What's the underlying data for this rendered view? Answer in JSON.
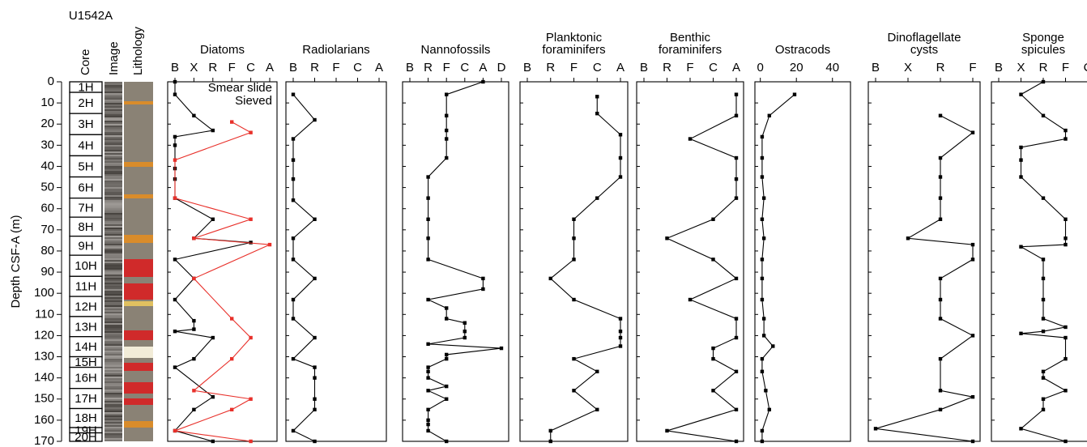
{
  "chart_data": {
    "type": "line",
    "title": "U1542A",
    "ylabel": "Depth CSF-A (m)",
    "column_headers": [
      "Core",
      "Image",
      "Lithology"
    ],
    "ylim": [
      0,
      170
    ],
    "yticks": [
      0,
      10,
      20,
      30,
      40,
      50,
      60,
      70,
      80,
      90,
      100,
      110,
      120,
      130,
      140,
      150,
      160,
      170
    ],
    "legend": "upper right",
    "cores": {
      "labels": [
        "1H",
        "2H",
        "3H",
        "4H",
        "5H",
        "6H",
        "7H",
        "8H",
        "9H",
        "10H",
        "11H",
        "12H",
        "13H",
        "14H",
        "15H",
        "16H",
        "17H",
        "18H",
        "19H",
        "20H"
      ],
      "tops": [
        0,
        5,
        15,
        25,
        35,
        45,
        55,
        64,
        73,
        82,
        92,
        101.5,
        111,
        120.5,
        130,
        135,
        145,
        154.5,
        163.5,
        166
      ],
      "bottoms": [
        5,
        15,
        25,
        35,
        45,
        55,
        64,
        73,
        82,
        92,
        101.5,
        111,
        120.5,
        130,
        135,
        145,
        154.5,
        163.5,
        166,
        170
      ]
    },
    "panels": [
      {
        "title": [
          "Diatoms"
        ],
        "categories": [
          "B",
          "X",
          "R",
          "F",
          "C",
          "A"
        ],
        "series": [
          {
            "name": "Smear slide",
            "color": "#000000",
            "depth": [
              0,
              6,
              16,
              23,
              26,
              30,
              41,
              46,
              55,
              65,
              74,
              76,
              84,
              93,
              103,
              113,
              117,
              118,
              121,
              131,
              135,
              149,
              155,
              165,
              170
            ],
            "values": [
              "B",
              "B",
              "X",
              "R",
              "B",
              "B",
              "B",
              "B",
              "B",
              "R",
              "X",
              "C",
              "B",
              "X",
              "B",
              "X",
              "X",
              "B",
              "R",
              "X",
              "B",
              "R",
              "X",
              "B",
              "R"
            ]
          },
          {
            "name": "Sieved",
            "color": "#e8302a",
            "depth": [
              19,
              24,
              37,
              55,
              65,
              74,
              77,
              93,
              112,
              121,
              131,
              146,
              150,
              155,
              165,
              170
            ],
            "values": [
              "F",
              "C",
              "B",
              "B",
              "C",
              "X",
              "A",
              "X",
              "F",
              "C",
              "F",
              "X",
              "C",
              "F",
              "B",
              "C"
            ]
          }
        ]
      },
      {
        "title": [
          "Radiolarians"
        ],
        "categories": [
          "B",
          "R",
          "F",
          "C",
          "A"
        ],
        "series": [
          {
            "color": "#000000",
            "depth": [
              6,
              18,
              27,
              37,
              46,
              56,
              65,
              74,
              84,
              93,
              103,
              112,
              121,
              131,
              135,
              140,
              150,
              155,
              165,
              170
            ],
            "values": [
              "B",
              "R",
              "B",
              "B",
              "B",
              "B",
              "R",
              "B",
              "B",
              "R",
              "B",
              "B",
              "R",
              "B",
              "R",
              "R",
              "R",
              "R",
              "B",
              "R"
            ]
          }
        ]
      },
      {
        "title": [
          "Nannofossils"
        ],
        "categories": [
          "B",
          "R",
          "F",
          "C",
          "A",
          "D"
        ],
        "series": [
          {
            "color": "#000000",
            "depth": [
              0,
              6,
              16,
              23,
              27,
              36,
              45,
              55,
              65,
              74,
              84,
              93,
              98,
              103,
              107,
              112,
              114,
              118,
              121,
              124,
              126,
              129,
              131,
              135,
              137,
              140,
              144,
              146,
              150,
              155,
              160,
              162,
              165,
              170
            ],
            "values": [
              "A",
              "F",
              "F",
              "F",
              "F",
              "F",
              "R",
              "R",
              "R",
              "R",
              "R",
              "A",
              "A",
              "R",
              "F",
              "F",
              "C",
              "C",
              "C",
              "R",
              "D",
              "F",
              "F",
              "R",
              "R",
              "R",
              "F",
              "R",
              "F",
              "R",
              "R",
              "R",
              "R",
              "F"
            ]
          }
        ]
      },
      {
        "title": [
          "Planktonic",
          "foraminifers"
        ],
        "categories": [
          "B",
          "R",
          "F",
          "C",
          "A"
        ],
        "series": [
          {
            "color": "#000000",
            "depth": [
              7,
              15,
              25,
              36,
              45,
              55,
              65,
              74,
              84,
              93,
              103,
              112,
              118,
              121,
              125,
              131,
              137,
              146,
              155,
              165,
              170
            ],
            "values": [
              "C",
              "C",
              "A",
              "A",
              "A",
              "C",
              "F",
              "F",
              "F",
              "R",
              "F",
              "A",
              "A",
              "A",
              "A",
              "F",
              "C",
              "F",
              "C",
              "R",
              "R"
            ]
          }
        ]
      },
      {
        "title": [
          "Benthic",
          "foraminifers"
        ],
        "categories": [
          "B",
          "R",
          "F",
          "C",
          "A"
        ],
        "series": [
          {
            "color": "#000000",
            "depth": [
              6,
              16,
              27,
              36,
              46,
              55,
              65,
              74,
              84,
              93,
              103,
              112,
              121,
              126,
              131,
              137,
              146,
              155,
              165,
              170
            ],
            "values": [
              "A",
              "A",
              "F",
              "A",
              "A",
              "A",
              "C",
              "R",
              "C",
              "A",
              "F",
              "A",
              "A",
              "C",
              "C",
              "A",
              "C",
              "A",
              "R",
              "A"
            ]
          }
        ]
      },
      {
        "title": [
          "Ostracods"
        ],
        "xlim": [
          -3,
          50
        ],
        "xticks": [
          0,
          20,
          40
        ],
        "series": [
          {
            "color": "#000000",
            "depth": [
              6,
              16,
              26,
              36,
              45,
              55,
              65,
              74,
              84,
              93,
              103,
              112,
              120,
              125,
              131,
              137,
              146,
              155,
              165,
              170
            ],
            "values": [
              19,
              5,
              1,
              1,
              1,
              2,
              1,
              2,
              1,
              1,
              1,
              2,
              2,
              7,
              1,
              1,
              3,
              5,
              1,
              1
            ]
          }
        ]
      },
      {
        "title": [
          "Dinoflagellate",
          "cysts"
        ],
        "categories": [
          "B",
          "X",
          "R",
          "F"
        ],
        "series": [
          {
            "color": "#000000",
            "depth": [
              16,
              24,
              36,
              45,
              55,
              65,
              74,
              77,
              84,
              93,
              103,
              112,
              120,
              131,
              146,
              149,
              155,
              164,
              170
            ],
            "values": [
              "R",
              "F",
              "R",
              "R",
              "R",
              "R",
              "X",
              "F",
              "F",
              "R",
              "R",
              "R",
              "F",
              "R",
              "R",
              "F",
              "R",
              "B",
              "F"
            ]
          }
        ]
      },
      {
        "title": [
          "Sponge",
          "spicules"
        ],
        "categories": [
          "B",
          "X",
          "R",
          "F",
          "C"
        ],
        "series": [
          {
            "color": "#000000",
            "depth": [
              0,
              6,
              16,
              23,
              27,
              31,
              37,
              45,
              55,
              65,
              74,
              77,
              78,
              84,
              93,
              103,
              112,
              116,
              118,
              119,
              121,
              131,
              137,
              140,
              146,
              150,
              155,
              164,
              170
            ],
            "values": [
              "R",
              "X",
              "R",
              "F",
              "F",
              "X",
              "X",
              "X",
              "R",
              "F",
              "F",
              "F",
              "X",
              "R",
              "R",
              "R",
              "R",
              "F",
              "R",
              "X",
              "F",
              "F",
              "R",
              "R",
              "F",
              "R",
              "R",
              "X",
              "F"
            ]
          }
        ]
      }
    ]
  }
}
